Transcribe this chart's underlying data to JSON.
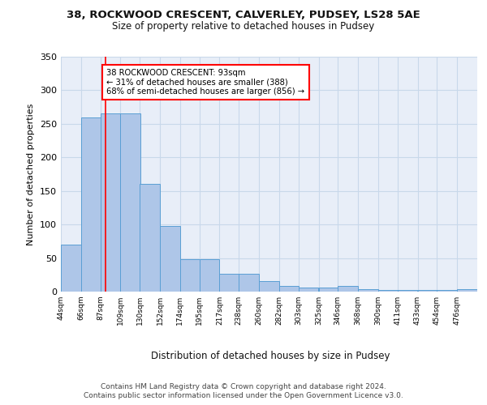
{
  "title1": "38, ROCKWOOD CRESCENT, CALVERLEY, PUDSEY, LS28 5AE",
  "title2": "Size of property relative to detached houses in Pudsey",
  "xlabel": "Distribution of detached houses by size in Pudsey",
  "ylabel": "Number of detached properties",
  "bins": [
    44,
    66,
    87,
    109,
    130,
    152,
    174,
    195,
    217,
    238,
    260,
    282,
    303,
    325,
    346,
    368,
    390,
    411,
    433,
    454,
    476
  ],
  "counts": [
    70,
    260,
    265,
    265,
    160,
    98,
    48,
    48,
    27,
    27,
    16,
    8,
    6,
    6,
    8,
    4,
    2,
    3,
    2,
    2,
    4
  ],
  "bar_color": "#aec6e8",
  "bar_edge_color": "#5a9fd4",
  "red_line_x": 93,
  "annotation_text": "38 ROCKWOOD CRESCENT: 93sqm\n← 31% of detached houses are smaller (388)\n68% of semi-detached houses are larger (856) →",
  "annotation_box_color": "white",
  "annotation_box_edge_color": "red",
  "red_line_color": "red",
  "grid_color": "#c8d8ea",
  "background_color": "#e8eef8",
  "ylim": [
    0,
    350
  ],
  "footer1": "Contains HM Land Registry data © Crown copyright and database right 2024.",
  "footer2": "Contains public sector information licensed under the Open Government Licence v3.0.",
  "tick_labels": [
    "44sqm",
    "66sqm",
    "87sqm",
    "109sqm",
    "130sqm",
    "152sqm",
    "174sqm",
    "195sqm",
    "217sqm",
    "238sqm",
    "260sqm",
    "282sqm",
    "303sqm",
    "325sqm",
    "346sqm",
    "368sqm",
    "390sqm",
    "411sqm",
    "433sqm",
    "454sqm",
    "476sqm"
  ]
}
